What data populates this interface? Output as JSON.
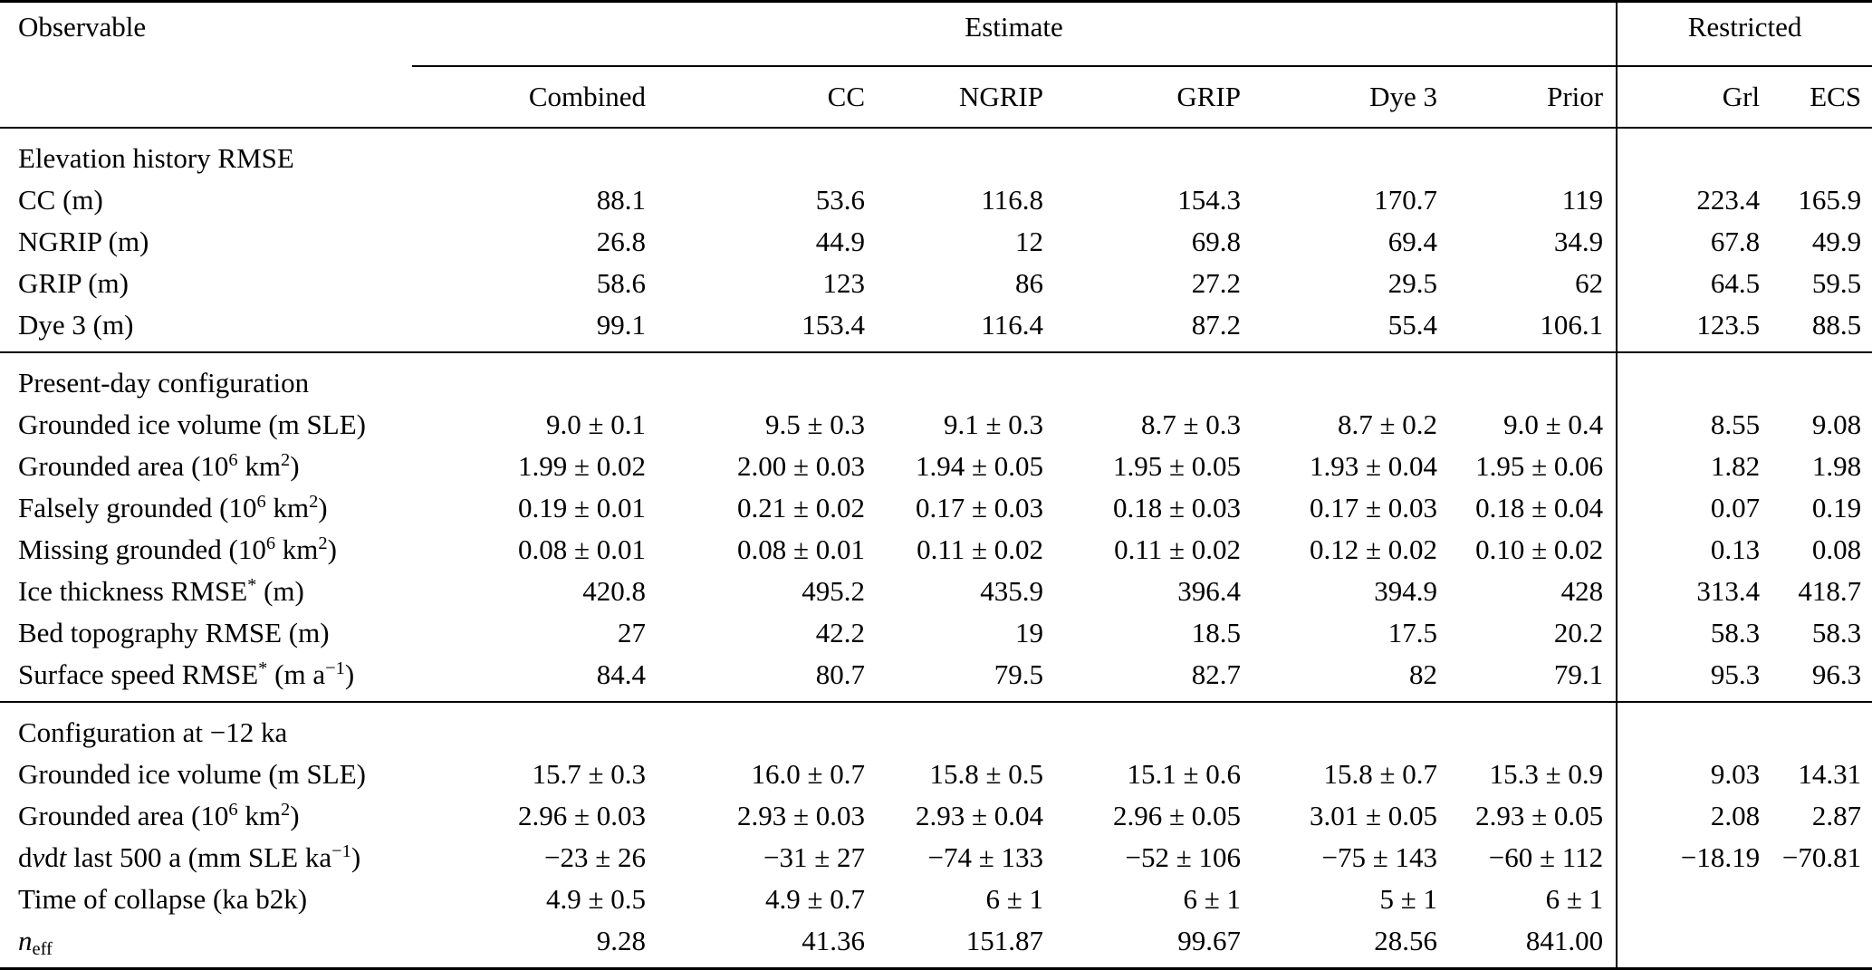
{
  "colors": {
    "background": "#ffffff",
    "text": "#000000",
    "rule": "#000000"
  },
  "table": {
    "header": {
      "observable": "Observable",
      "estimate_group": "Estimate",
      "restricted_group": "Restricted",
      "columns": [
        "Combined",
        "CC",
        "NGRIP",
        "GRIP",
        "Dye 3",
        "Prior",
        "Grl",
        "ECS"
      ],
      "bar_before_column_index": 6
    },
    "sections": [
      {
        "title": "Elevation history RMSE",
        "rows": [
          {
            "label": "CC (m)",
            "values": [
              "88.1",
              "53.6",
              "116.8",
              "154.3",
              "170.7",
              "119",
              "223.4",
              "165.9"
            ]
          },
          {
            "label": "NGRIP (m)",
            "values": [
              "26.8",
              "44.9",
              "12",
              "69.8",
              "69.4",
              "34.9",
              "67.8",
              "49.9"
            ]
          },
          {
            "label": "GRIP (m)",
            "values": [
              "58.6",
              "123",
              "86",
              "27.2",
              "29.5",
              "62",
              "64.5",
              "59.5"
            ]
          },
          {
            "label": "Dye 3 (m)",
            "values": [
              "99.1",
              "153.4",
              "116.4",
              "87.2",
              "55.4",
              "106.1",
              "123.5",
              "88.5"
            ]
          }
        ]
      },
      {
        "title": "Present-day configuration",
        "rows": [
          {
            "label": "Grounded ice volume (m SLE)",
            "values": [
              "9.0 ± 0.1",
              "9.5 ± 0.3",
              "9.1 ± 0.3",
              "8.7 ± 0.3",
              "8.7 ± 0.2",
              "9.0 ± 0.4",
              "8.55",
              "9.08"
            ]
          },
          {
            "label": "Grounded area (10^{6} km^{2})",
            "values": [
              "1.99 ± 0.02",
              "2.00 ± 0.03",
              "1.94 ± 0.05",
              "1.95 ± 0.05",
              "1.93 ± 0.04",
              "1.95 ± 0.06",
              "1.82",
              "1.98"
            ]
          },
          {
            "label": "Falsely grounded (10^{6} km^{2})",
            "values": [
              "0.19 ± 0.01",
              "0.21 ± 0.02",
              "0.17 ± 0.03",
              "0.18 ± 0.03",
              "0.17 ± 0.03",
              "0.18 ± 0.04",
              "0.07",
              "0.19"
            ]
          },
          {
            "label": "Missing grounded (10^{6} km^{2})",
            "values": [
              "0.08 ± 0.01",
              "0.08 ± 0.01",
              "0.11 ± 0.02",
              "0.11 ± 0.02",
              "0.12 ± 0.02",
              "0.10 ± 0.02",
              "0.13",
              "0.08"
            ]
          },
          {
            "label": "Ice thickness RMSE^{*} (m)",
            "values": [
              "420.8",
              "495.2",
              "435.9",
              "396.4",
              "394.9",
              "428",
              "313.4",
              "418.7"
            ]
          },
          {
            "label": "Bed topography RMSE (m)",
            "values": [
              "27",
              "42.2",
              "19",
              "18.5",
              "17.5",
              "20.2",
              "58.3",
              "58.3"
            ]
          },
          {
            "label": "Surface speed RMSE^{*} (m a^{−1})",
            "values": [
              "84.4",
              "80.7",
              "79.5",
              "82.7",
              "82",
              "79.1",
              "95.3",
              "96.3"
            ]
          }
        ]
      },
      {
        "title": "Configuration at −12 ka",
        "rows": [
          {
            "label": "Grounded ice volume (m SLE)",
            "values": [
              "15.7 ± 0.3",
              "16.0 ± 0.7",
              "15.8 ± 0.5",
              "15.1 ± 0.6",
              "15.8 ± 0.7",
              "15.3 ± 0.9",
              "9.03",
              "14.31"
            ]
          },
          {
            "label": "Grounded area (10^{6} km^{2})",
            "values": [
              "2.96 ± 0.03",
              "2.93 ± 0.03",
              "2.93 ± 0.04",
              "2.96 ± 0.05",
              "3.01 ± 0.05",
              "2.93 ± 0.05",
              "2.08",
              "2.87"
            ]
          },
          {
            "label": "d*v*d*t* last 500 a (mm SLE ka^{−1})",
            "values": [
              "−23 ± 26",
              "−31 ± 27",
              "−74 ± 133",
              "−52 ± 106",
              "−75 ± 143",
              "−60 ± 112",
              "−18.19",
              "−70.81"
            ]
          },
          {
            "label": "Time of collapse (ka b2k)",
            "values": [
              "4.9 ± 0.5",
              "4.9 ± 0.7",
              "6 ± 1",
              "6 ± 1",
              "5 ± 1",
              "6 ± 1",
              "",
              ""
            ]
          },
          {
            "label": "*n*_{eff}",
            "values": [
              "9.28",
              "41.36",
              "151.87",
              "99.67",
              "28.56",
              "841.00",
              "",
              ""
            ]
          }
        ]
      }
    ]
  }
}
